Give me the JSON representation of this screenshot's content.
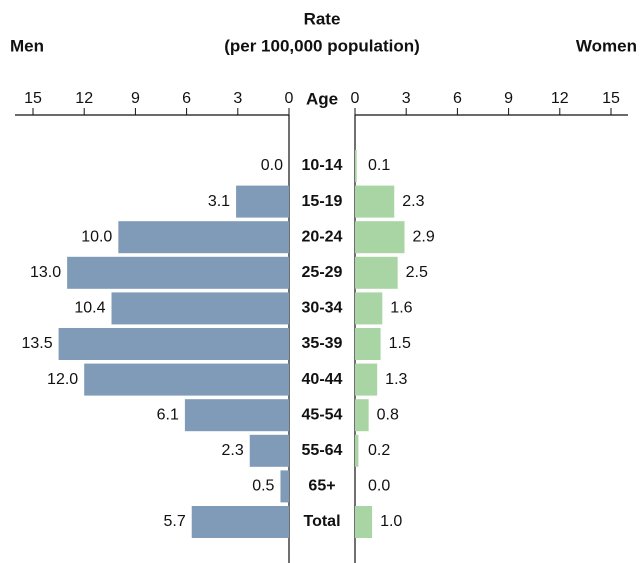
{
  "chart_data": {
    "type": "bar",
    "title": "Rate",
    "subtitle": "(per 100,000 population)",
    "category_label": "Age",
    "categories": [
      "10-14",
      "15-19",
      "20-24",
      "25-29",
      "30-34",
      "35-39",
      "40-44",
      "45-54",
      "55-64",
      "65+",
      "Total"
    ],
    "series": [
      {
        "name": "Men",
        "color": "#7f9bb8",
        "values": [
          0.0,
          3.1,
          10.0,
          13.0,
          10.4,
          13.5,
          12.0,
          6.1,
          2.3,
          0.5,
          5.7
        ],
        "value_labels": [
          "0.0",
          "3.1",
          "10.0",
          "13.0",
          "10.4",
          "13.5",
          "12.0",
          "6.1",
          "2.3",
          "0.5",
          "5.7"
        ]
      },
      {
        "name": "Women",
        "color": "#a8d5a3",
        "values": [
          0.1,
          2.3,
          2.9,
          2.5,
          1.6,
          1.5,
          1.3,
          0.8,
          0.2,
          0.0,
          1.0
        ],
        "value_labels": [
          "0.1",
          "2.3",
          "2.9",
          "2.5",
          "1.6",
          "1.5",
          "1.3",
          "0.8",
          "0.2",
          "0.0",
          "1.0"
        ]
      }
    ],
    "xlim": [
      0,
      15
    ],
    "xticks": [
      0,
      3,
      6,
      9,
      12,
      15
    ]
  }
}
